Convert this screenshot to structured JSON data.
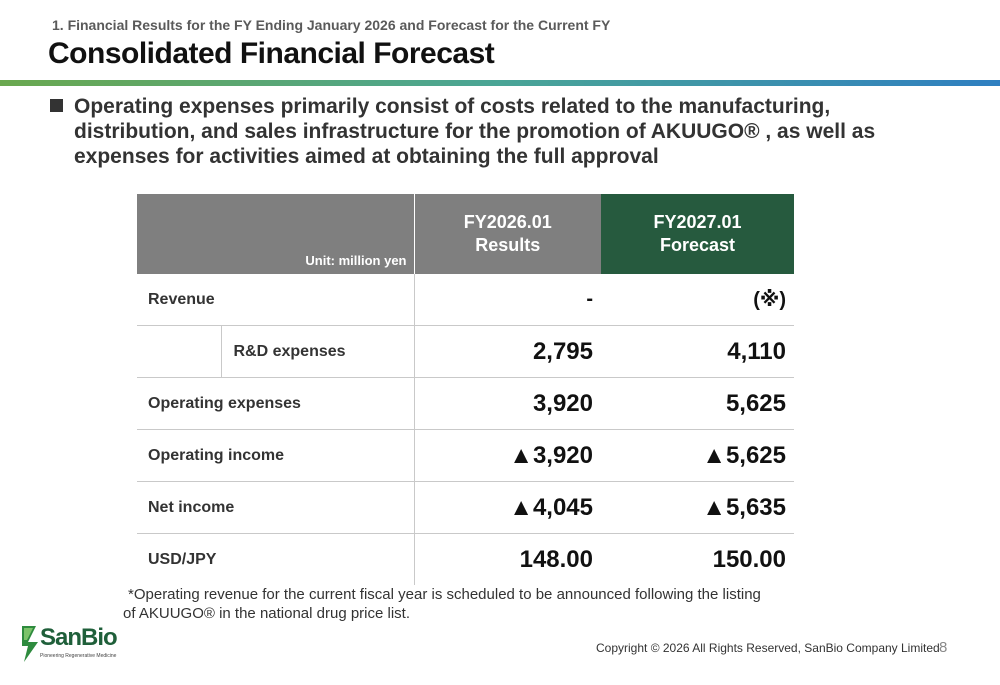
{
  "header": {
    "section_subtitle": "1. Financial Results for the FY Ending January 2026 and Forecast for the Current FY",
    "page_title": "Consolidated Financial Forecast",
    "accent_gradient": [
      "#6aa84f",
      "#4aa596",
      "#2f7fc1"
    ]
  },
  "bullet": {
    "text": "Operating expenses primarily consist of costs related to the manufacturing, distribution, and sales infrastructure for the promotion of AKUUGO® , as well as expenses for activities aimed at obtaining the full approval"
  },
  "table": {
    "unit_label": "Unit: million yen",
    "col_results_line1": "FY2026.01",
    "col_results_line2": "Results",
    "col_forecast_line1": "FY2027.01",
    "col_forecast_line2": "Forecast",
    "header_gray": "#7f7f7f",
    "header_green": "#265a3e",
    "rows": [
      {
        "label": "Revenue",
        "results": "-",
        "forecast": "(※)"
      },
      {
        "label": "R&D expenses",
        "results": "2,795",
        "forecast": "4,110"
      },
      {
        "label": "Operating expenses",
        "results": "3,920",
        "forecast": "5,625"
      },
      {
        "label": "Operating income",
        "results": "▲3,920",
        "forecast": "▲5,625"
      },
      {
        "label": "Net income",
        "results": "▲4,045",
        "forecast": "▲5,635"
      },
      {
        "label": "USD/JPY",
        "results": "148.00",
        "forecast": "150.00"
      }
    ]
  },
  "footnote": {
    "line1": "*Operating revenue for the current fiscal year is scheduled to be announced following the listing",
    "line2": "of AKUUGO® in the national drug price list."
  },
  "footer": {
    "logo_text": "SanBio",
    "logo_tagline": "Pioneering Regenerative Medicine",
    "copyright": "Copyright © 2026 All Rights Reserved, SanBio Company Limited",
    "page_number": "8"
  }
}
